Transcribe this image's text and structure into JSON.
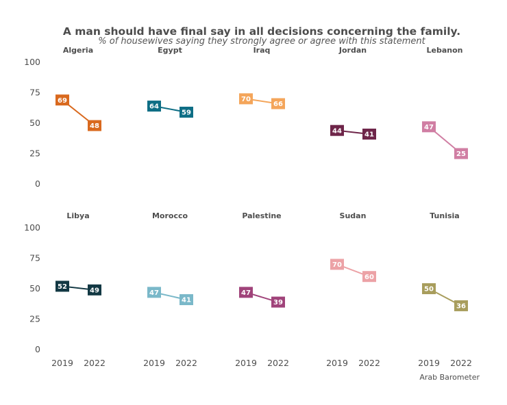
{
  "chart_data": {
    "type": "line",
    "title": "A man should have final say in all decisions concerning the family.",
    "subtitle": "% of housewives saying they strongly agree or agree with this statement",
    "caption": "Arab Barometer",
    "x": [
      "2019",
      "2022"
    ],
    "y_ticks": [
      "100",
      "75",
      "50",
      "25",
      "0"
    ],
    "ylim": [
      0,
      100
    ],
    "grid": false,
    "facets": [
      {
        "name": "Algeria",
        "values": [
          69,
          48
        ],
        "color": "#d9691e"
      },
      {
        "name": "Egypt",
        "values": [
          64,
          59
        ],
        "color": "#0e6e85"
      },
      {
        "name": "Iraq",
        "values": [
          70,
          66
        ],
        "color": "#f4a55a"
      },
      {
        "name": "Jordan",
        "values": [
          44,
          41
        ],
        "color": "#6e2549"
      },
      {
        "name": "Lebanon",
        "values": [
          47,
          25
        ],
        "color": "#d07ea3"
      },
      {
        "name": "Libya",
        "values": [
          52,
          49
        ],
        "color": "#123843"
      },
      {
        "name": "Morocco",
        "values": [
          47,
          41
        ],
        "color": "#7ab8c9"
      },
      {
        "name": "Palestine",
        "values": [
          47,
          39
        ],
        "color": "#a0437a"
      },
      {
        "name": "Sudan",
        "values": [
          70,
          60
        ],
        "color": "#eca2a6"
      },
      {
        "name": "Tunisia",
        "values": [
          50,
          36
        ],
        "color": "#a89d5c"
      }
    ]
  }
}
